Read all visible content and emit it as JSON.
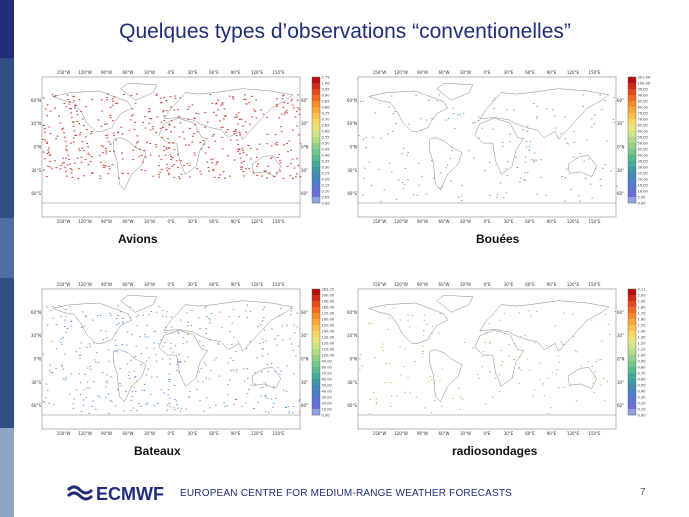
{
  "slide": {
    "title": "Quelques types d’observations “conventionelles”",
    "page_number": "7"
  },
  "footer": {
    "logo_text": "ECMWF",
    "org_name": "EUROPEAN CENTRE FOR MEDIUM-RANGE WEATHER FORECASTS"
  },
  "theme": {
    "title_color": "#1f2d7a",
    "strip_colors": [
      "#1f2d7a",
      "#2f4f86",
      "#4d6fa3",
      "#8ea6c6"
    ]
  },
  "axes": {
    "lon_ticks": [
      "150°W",
      "120°W",
      "90°W",
      "60°W",
      "30°W",
      "0°E",
      "30°E",
      "60°E",
      "90°E",
      "120°E",
      "150°E"
    ],
    "lat_ticks_left": [
      "60°N",
      "30°N",
      "0°N",
      "30°S",
      "60°S"
    ],
    "lat_ticks_right": [
      "60°",
      "30°",
      "0°N",
      "30°",
      "60°"
    ]
  },
  "panels": [
    {
      "label": "Avions",
      "point_color": "#c8281e",
      "colorbar": [
        "2.79",
        "1.00",
        "0.95",
        "0.90",
        "0.85",
        "0.80",
        "0.75",
        "0.70",
        "0.65",
        "0.60",
        "0.55",
        "0.50",
        "0.45",
        "0.40",
        "0.35",
        "0.30",
        "0.25",
        "0.20",
        "0.15",
        "0.10",
        "0.05",
        "0.00"
      ]
    },
    {
      "label": "Bouées",
      "point_color": "#3a9a3a",
      "colorbar": [
        "301.44",
        "100.00",
        "95.00",
        "90.00",
        "85.00",
        "80.00",
        "75.00",
        "70.00",
        "65.00",
        "60.00",
        "55.00",
        "50.00",
        "45.00",
        "40.00",
        "35.00",
        "30.00",
        "25.00",
        "20.00",
        "15.00",
        "10.00",
        "5.00",
        "0.00"
      ]
    },
    {
      "label": "Bateaux",
      "point_color": "#3a7ad0",
      "colorbar": [
        "283.25",
        "200.00",
        "190.00",
        "180.00",
        "170.00",
        "160.00",
        "150.00",
        "140.00",
        "130.00",
        "120.00",
        "110.00",
        "100.00",
        "90.00",
        "80.00",
        "70.00",
        "60.00",
        "50.00",
        "40.00",
        "30.00",
        "20.00",
        "10.00",
        "0.00"
      ]
    },
    {
      "label": "radiosondages",
      "point_color": "#7ab84a",
      "colorbar": [
        "2.11",
        "2.00",
        "1.90",
        "1.80",
        "1.70",
        "1.60",
        "1.50",
        "1.40",
        "1.30",
        "1.20",
        "1.10",
        "1.00",
        "0.90",
        "0.80",
        "0.70",
        "0.60",
        "0.50",
        "0.40",
        "0.30",
        "0.20",
        "0.10",
        "0.00"
      ]
    }
  ],
  "colorbar_colors": [
    "#b10f0f",
    "#cf2a1a",
    "#e34a1c",
    "#f06a23",
    "#f58a2b",
    "#f9a63a",
    "#fbc04f",
    "#f7d766",
    "#e9e37c",
    "#cfe38b",
    "#b3db8a",
    "#94d08a",
    "#76c58c",
    "#5ab991",
    "#45aa98",
    "#3f98a4",
    "#4489b5",
    "#4d7dc4",
    "#5a74cf",
    "#6a6fd6",
    "#8fa3e0"
  ]
}
